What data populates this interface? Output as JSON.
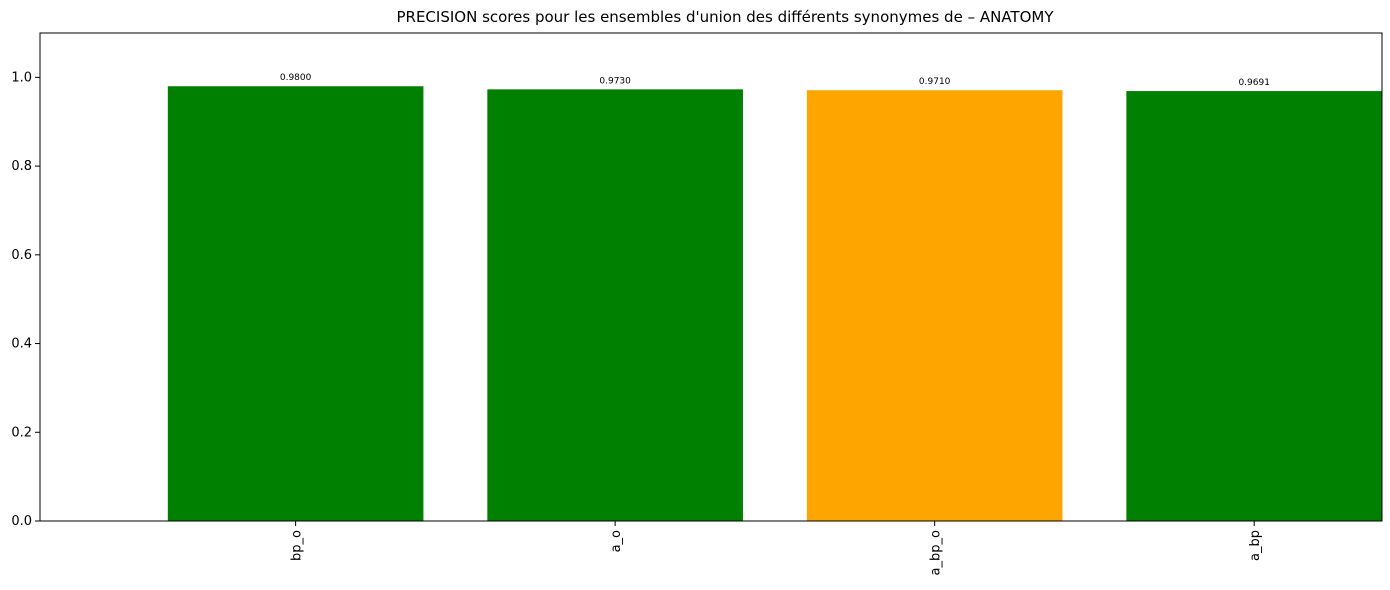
{
  "chart_data": {
    "type": "bar",
    "title": "PRECISION scores pour les ensembles d'union des différents synonymes de – ANATOMY",
    "xlabel": "",
    "ylabel": "",
    "categories": [
      "bp_o",
      "a_o",
      "a_bp_o",
      "a_bp"
    ],
    "values": [
      0.98,
      0.973,
      0.971,
      0.9691
    ],
    "data_labels": [
      "0.9800",
      "0.9730",
      "0.9710",
      "0.9691"
    ],
    "bar_colors": [
      "#008000",
      "#008000",
      "#FFA500",
      "#008000"
    ],
    "ylim": [
      0,
      1.1
    ],
    "yticks": [
      0.0,
      0.2,
      0.4,
      0.6,
      0.8,
      1.0
    ],
    "ytick_labels": [
      "0.0",
      "0.2",
      "0.4",
      "0.6",
      "0.8",
      "1.0"
    ],
    "x_tick_rotation": "vertical",
    "grid": false,
    "legend": "none"
  }
}
